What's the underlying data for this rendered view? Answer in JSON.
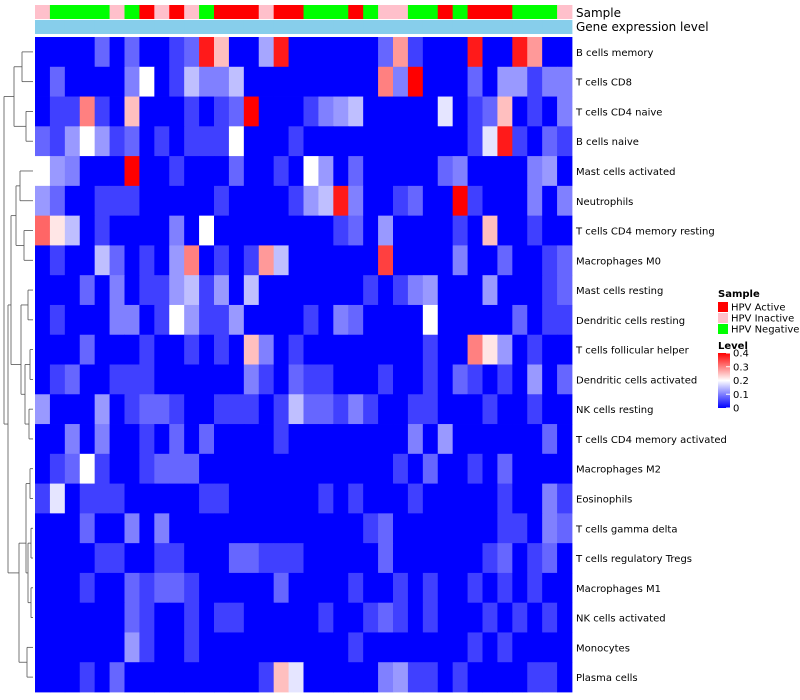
{
  "chart_data": {
    "type": "heatmap",
    "annotation_tracks": [
      {
        "name": "Sample",
        "values": [
          "HPV Inactive",
          "HPV Negative",
          "HPV Negative",
          "HPV Negative",
          "HPV Negative",
          "HPV Inactive",
          "HPV Negative",
          "HPV Active",
          "HPV Inactive",
          "HPV Active",
          "HPV Inactive",
          "HPV Negative",
          "HPV Active",
          "HPV Active",
          "HPV Active",
          "HPV Inactive",
          "HPV Active",
          "HPV Active",
          "HPV Negative",
          "HPV Negative",
          "HPV Negative",
          "HPV Active",
          "HPV Negative",
          "HPV Inactive",
          "HPV Inactive",
          "HPV Negative",
          "HPV Negative",
          "HPV Active",
          "HPV Negative",
          "HPV Active",
          "HPV Active",
          "HPV Active",
          "HPV Negative",
          "HPV Negative",
          "HPV Negative",
          "HPV Inactive"
        ]
      },
      {
        "name": "Gene expression level",
        "values": [
          "light",
          "light",
          "light",
          "light",
          "light",
          "light",
          "light",
          "light",
          "light",
          "light",
          "light",
          "light",
          "light",
          "light",
          "light",
          "light",
          "light",
          "light",
          "light",
          "light",
          "light",
          "light",
          "light",
          "light",
          "light",
          "light",
          "light",
          "light",
          "light",
          "light",
          "light",
          "light",
          "light",
          "light",
          "light",
          "light"
        ]
      }
    ],
    "rows": [
      "B cells memory",
      "T cells CD8",
      "T cells CD4 naive",
      "B cells naive",
      "Mast cells activated",
      "Neutrophils",
      "T cells CD4 memory resting",
      "Macrophages M0",
      "Mast cells resting",
      "Dendritic cells resting",
      "T cells follicular helper",
      "Dendritic cells activated",
      "NK cells resting",
      "T cells CD4 memory activated",
      "Macrophages M2",
      "Eosinophils",
      "T cells gamma delta",
      "T cells regulatory  Tregs",
      "Macrophages M1",
      "NK cells activated",
      "Monocytes",
      "Plasma cells"
    ],
    "values": [
      [
        0,
        0,
        0,
        0,
        0.08,
        0,
        0.08,
        0,
        0,
        0.05,
        0.08,
        0.38,
        0.25,
        0,
        0,
        0.13,
        0.38,
        0,
        0,
        0,
        0,
        0,
        0,
        0.08,
        0.28,
        0.05,
        0,
        0,
        0,
        0.38,
        0,
        0,
        0.38,
        0.28,
        0,
        0
      ],
      [
        0,
        0.08,
        0,
        0,
        0,
        0,
        0.1,
        0.2,
        0,
        0.05,
        0.15,
        0.1,
        0.1,
        0.15,
        0,
        0,
        0,
        0,
        0,
        0,
        0,
        0,
        0,
        0.3,
        0.1,
        0.4,
        0,
        0,
        0,
        0.08,
        0,
        0.12,
        0.12,
        0.05,
        0.1,
        0.1
      ],
      [
        0,
        0.05,
        0.05,
        0.3,
        0.05,
        0,
        0.25,
        0,
        0,
        0,
        0.05,
        0,
        0.05,
        0.08,
        0.4,
        0,
        0,
        0,
        0.05,
        0.1,
        0.12,
        0.15,
        0,
        0,
        0,
        0,
        0,
        0.18,
        0,
        0.05,
        0.08,
        0.25,
        0,
        0.05,
        0,
        0.1
      ],
      [
        0.08,
        0.05,
        0.12,
        0.2,
        0.12,
        0.05,
        0.08,
        0,
        0.05,
        0,
        0.05,
        0.05,
        0.05,
        0.2,
        0,
        0,
        0,
        0.05,
        0,
        0,
        0,
        0,
        0,
        0,
        0,
        0,
        0,
        0,
        0,
        0.05,
        0.18,
        0.38,
        0.05,
        0,
        0.08,
        0.05
      ],
      [
        0.2,
        0.12,
        0.1,
        0,
        0,
        0,
        0.4,
        0,
        0,
        0.05,
        0,
        0,
        0,
        0.08,
        0,
        0,
        0.05,
        0,
        0.2,
        0.12,
        0,
        0.08,
        0,
        0,
        0,
        0,
        0,
        0.08,
        0.1,
        0,
        0,
        0,
        0,
        0.1,
        0.12,
        0
      ],
      [
        0.12,
        0.08,
        0,
        0,
        0.05,
        0.05,
        0.05,
        0,
        0,
        0,
        0,
        0,
        0.05,
        0,
        0,
        0,
        0,
        0.05,
        0.12,
        0.15,
        0.38,
        0.1,
        0,
        0,
        0.05,
        0.08,
        0,
        0,
        0.4,
        0.05,
        0,
        0,
        0,
        0.1,
        0,
        0.1
      ],
      [
        0.32,
        0.22,
        0.15,
        0,
        0.05,
        0,
        0,
        0,
        0,
        0.1,
        0,
        0.2,
        0,
        0,
        0,
        0,
        0,
        0,
        0,
        0,
        0.05,
        0.08,
        0,
        0.12,
        0,
        0,
        0,
        0,
        0.05,
        0,
        0.25,
        0,
        0,
        0.05,
        0,
        0
      ],
      [
        0,
        0.05,
        0,
        0,
        0.15,
        0.08,
        0,
        0.05,
        0,
        0.12,
        0.3,
        0,
        0.05,
        0,
        0.05,
        0.28,
        0.15,
        0,
        0,
        0,
        0,
        0,
        0,
        0.35,
        0,
        0,
        0,
        0,
        0.1,
        0,
        0,
        0.08,
        0,
        0,
        0.05,
        0.08
      ],
      [
        0,
        0,
        0,
        0.08,
        0,
        0.1,
        0,
        0.05,
        0.05,
        0.12,
        0.15,
        0.05,
        0.12,
        0,
        0.15,
        0,
        0,
        0,
        0,
        0,
        0,
        0,
        0.05,
        0,
        0.05,
        0.1,
        0.12,
        0,
        0,
        0,
        0.12,
        0,
        0,
        0,
        0.05,
        0.08
      ],
      [
        0,
        0.05,
        0,
        0,
        0,
        0.1,
        0.1,
        0,
        0.05,
        0.2,
        0.12,
        0.05,
        0.05,
        0.12,
        0,
        0,
        0,
        0,
        0.05,
        0,
        0.1,
        0.08,
        0,
        0,
        0,
        0,
        0.2,
        0,
        0,
        0,
        0,
        0,
        0.08,
        0,
        0.05,
        0.05
      ],
      [
        0,
        0,
        0,
        0.08,
        0,
        0,
        0,
        0.05,
        0,
        0,
        0.05,
        0,
        0.05,
        0,
        0.25,
        0.1,
        0,
        0.05,
        0,
        0,
        0,
        0,
        0,
        0,
        0,
        0,
        0.05,
        0,
        0,
        0.3,
        0.22,
        0.12,
        0,
        0.05,
        0,
        0
      ],
      [
        0,
        0.05,
        0.08,
        0,
        0,
        0.05,
        0.05,
        0.05,
        0,
        0,
        0,
        0,
        0,
        0,
        0.1,
        0.05,
        0,
        0.08,
        0.05,
        0.05,
        0,
        0,
        0,
        0.05,
        0,
        0,
        0.05,
        0,
        0.08,
        0.05,
        0,
        0.05,
        0,
        0.12,
        0,
        0.08
      ],
      [
        0.12,
        0,
        0,
        0,
        0.12,
        0,
        0.05,
        0.08,
        0.08,
        0.05,
        0,
        0,
        0.05,
        0.05,
        0.05,
        0,
        0.05,
        0.15,
        0.08,
        0.08,
        0.05,
        0.1,
        0.05,
        0,
        0,
        0.05,
        0.05,
        0,
        0,
        0,
        0.05,
        0,
        0,
        0.05,
        0,
        0
      ],
      [
        0,
        0,
        0.1,
        0,
        0.1,
        0,
        0,
        0.05,
        0,
        0.08,
        0,
        0.08,
        0,
        0,
        0,
        0,
        0.05,
        0,
        0,
        0,
        0,
        0,
        0,
        0,
        0,
        0.1,
        0,
        0.12,
        0,
        0,
        0,
        0,
        0,
        0,
        0.08,
        0
      ],
      [
        0,
        0.05,
        0.08,
        0.2,
        0.05,
        0,
        0,
        0.05,
        0.08,
        0.08,
        0.08,
        0,
        0,
        0,
        0,
        0,
        0,
        0,
        0,
        0,
        0,
        0,
        0,
        0,
        0.05,
        0,
        0.08,
        0,
        0,
        0.05,
        0,
        0.08,
        0,
        0,
        0,
        0
      ],
      [
        0.05,
        0.18,
        0,
        0.05,
        0.05,
        0.05,
        0,
        0,
        0,
        0,
        0,
        0.05,
        0.05,
        0,
        0,
        0,
        0,
        0,
        0,
        0.05,
        0,
        0.05,
        0,
        0,
        0,
        0.05,
        0,
        0,
        0,
        0,
        0,
        0.05,
        0,
        0,
        0.1,
        0.05
      ],
      [
        0,
        0,
        0,
        0.08,
        0,
        0,
        0.1,
        0,
        0.1,
        0,
        0,
        0,
        0,
        0,
        0,
        0,
        0,
        0,
        0,
        0,
        0,
        0,
        0.05,
        0.08,
        0,
        0,
        0,
        0,
        0,
        0,
        0,
        0.05,
        0.05,
        0,
        0.1,
        0.08
      ],
      [
        0,
        0,
        0,
        0,
        0.05,
        0.05,
        0,
        0,
        0.05,
        0.05,
        0,
        0,
        0,
        0.08,
        0.08,
        0.05,
        0.05,
        0.05,
        0,
        0,
        0,
        0,
        0,
        0.08,
        0,
        0,
        0,
        0,
        0,
        0,
        0.05,
        0.08,
        0,
        0.05,
        0.08,
        0
      ],
      [
        0,
        0,
        0,
        0.05,
        0,
        0,
        0.08,
        0.05,
        0.08,
        0.08,
        0.05,
        0,
        0,
        0,
        0,
        0,
        0.08,
        0,
        0,
        0,
        0,
        0.05,
        0,
        0,
        0.05,
        0,
        0.05,
        0,
        0,
        0.05,
        0,
        0.05,
        0,
        0.05,
        0,
        0
      ],
      [
        0,
        0,
        0,
        0,
        0,
        0,
        0.08,
        0.05,
        0,
        0,
        0.05,
        0,
        0.05,
        0.05,
        0,
        0,
        0,
        0,
        0,
        0.05,
        0,
        0,
        0.05,
        0.08,
        0.05,
        0,
        0.05,
        0,
        0,
        0,
        0.05,
        0,
        0.05,
        0,
        0.05,
        0
      ],
      [
        0,
        0,
        0,
        0,
        0,
        0,
        0.12,
        0.05,
        0,
        0,
        0.05,
        0,
        0,
        0,
        0,
        0,
        0,
        0,
        0,
        0,
        0,
        0.05,
        0,
        0,
        0,
        0,
        0,
        0,
        0,
        0.05,
        0,
        0.05,
        0,
        0,
        0,
        0
      ],
      [
        0,
        0,
        0,
        0.05,
        0,
        0.08,
        0,
        0,
        0,
        0,
        0,
        0,
        0,
        0,
        0,
        0.05,
        0.25,
        0.18,
        0,
        0,
        0,
        0,
        0,
        0.1,
        0.12,
        0.05,
        0.05,
        0,
        0.05,
        0,
        0,
        0,
        0,
        0.05,
        0.05,
        0
      ]
    ],
    "sample_colors": {
      "HPV Active": "#ff0000",
      "HPV Inactive": "#ffc0cb",
      "HPV Negative": "#00ff00"
    },
    "gene_expression_color": "#87ceeb",
    "color_scale": {
      "min_color": "#0000ff",
      "mid_color": "#ffffff",
      "max_color": "#ff0000",
      "min": 0,
      "max": 0.4
    },
    "legend": {
      "sample": {
        "title": "Sample",
        "entries": [
          "HPV Active",
          "HPV Inactive",
          "HPV Negative"
        ]
      },
      "level": {
        "title": "Level",
        "ticks": [
          0.4,
          0.3,
          0.2,
          0.1,
          0
        ]
      }
    },
    "legend_position": "right",
    "dendrogram": "rows"
  }
}
